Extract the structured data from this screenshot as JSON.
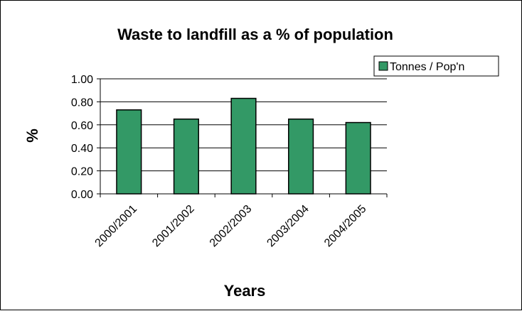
{
  "chart_data": {
    "type": "bar",
    "title": "Waste to landfill as a % of population",
    "xlabel": "Years",
    "ylabel": "%",
    "categories": [
      "2000/2001",
      "2001/2002",
      "2002/2003",
      "2003/2004",
      "2004/2005"
    ],
    "series": [
      {
        "name": "Tonnes / Pop'n",
        "values": [
          0.73,
          0.65,
          0.83,
          0.65,
          0.62
        ],
        "color": "#339966"
      }
    ],
    "ylim": [
      0,
      1
    ],
    "yticks": [
      "0.00",
      "0.20",
      "0.40",
      "0.60",
      "0.80",
      "1.00"
    ],
    "grid": true,
    "legend_position": "top-right"
  }
}
